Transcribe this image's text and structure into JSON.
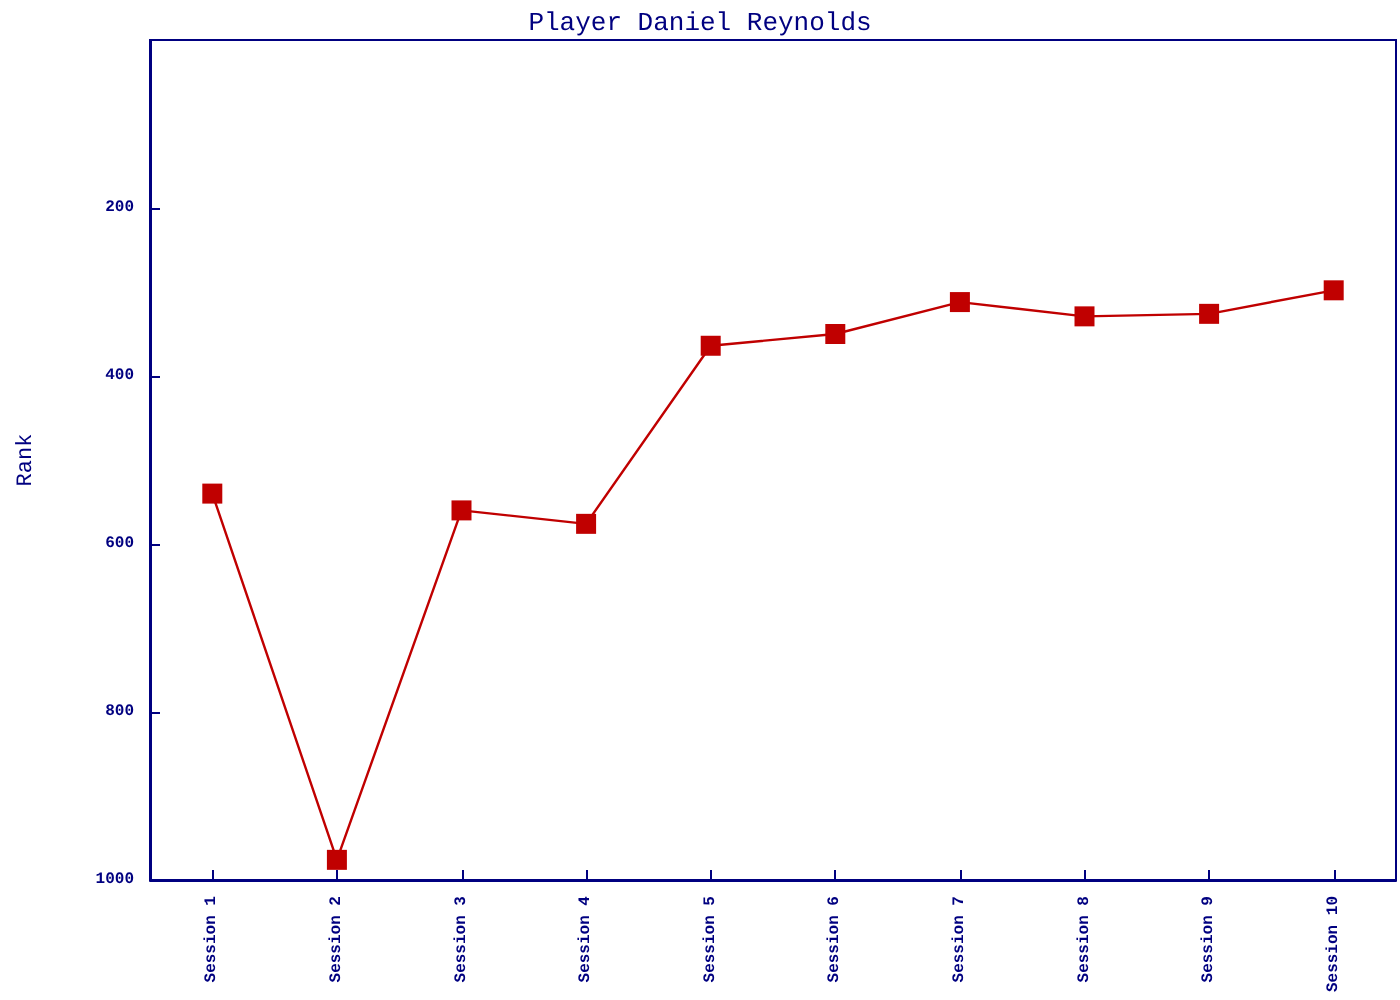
{
  "chart_data": {
    "type": "line",
    "title": "Player Daniel Reynolds",
    "ylabel": "Rank",
    "categories": [
      "Session 1",
      "Session 2",
      "Session 3",
      "Session 4",
      "Session 5",
      "Session 6",
      "Session 7",
      "Session 8",
      "Session 9",
      "Session 10"
    ],
    "series": [
      {
        "color": "#c00000",
        "values": [
          540,
          976,
          560,
          576,
          364,
          350,
          312,
          329,
          326,
          298
        ]
      }
    ],
    "ylim": [
      1000,
      0
    ],
    "yticks": [
      200,
      400,
      600,
      800,
      1000
    ],
    "grid": false,
    "marker": "square",
    "line_style": "solid"
  }
}
